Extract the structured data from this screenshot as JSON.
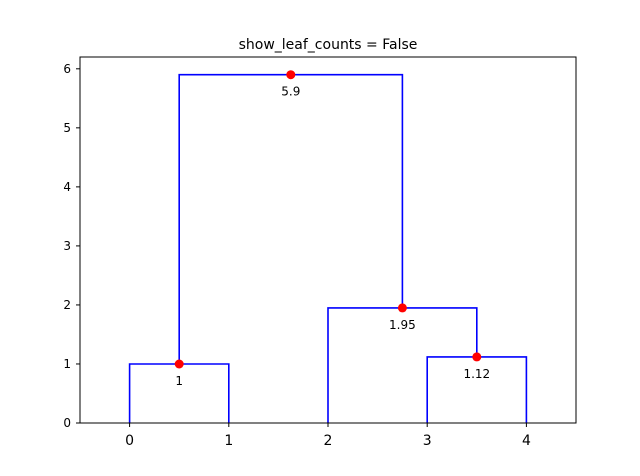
{
  "chart_data": {
    "type": "dendrogram",
    "title": "show_leaf_counts = False",
    "xlabel": "",
    "ylabel": "",
    "ylim": [
      0,
      6.2
    ],
    "xlim": [
      -0.5,
      4.5
    ],
    "y_ticks": [
      "0",
      "1",
      "2",
      "3",
      "4",
      "5",
      "6"
    ],
    "leaves": [
      "0",
      "1",
      "2",
      "3",
      "4"
    ],
    "links": [
      {
        "x": [
          0,
          0,
          1,
          1
        ],
        "y": [
          0,
          1.0,
          1.0,
          0
        ]
      },
      {
        "x": [
          3,
          3,
          4,
          4
        ],
        "y": [
          0,
          1.12,
          1.12,
          0
        ]
      },
      {
        "x": [
          2,
          2,
          3.5,
          3.5
        ],
        "y": [
          0,
          1.95,
          1.95,
          1.12
        ]
      },
      {
        "x": [
          0.5,
          0.5,
          2.75,
          2.75
        ],
        "y": [
          1.0,
          5.9,
          5.9,
          1.95
        ]
      }
    ],
    "nodes": [
      {
        "x": 0.5,
        "y": 1.0,
        "label": "1"
      },
      {
        "x": 3.5,
        "y": 1.12,
        "label": "1.12"
      },
      {
        "x": 2.75,
        "y": 1.95,
        "label": "1.95"
      },
      {
        "x": 1.625,
        "y": 5.9,
        "label": "5.9"
      }
    ],
    "grid": false,
    "colors": {
      "link": "#0000ff",
      "node": "#ff0000",
      "axis": "#000000"
    }
  }
}
